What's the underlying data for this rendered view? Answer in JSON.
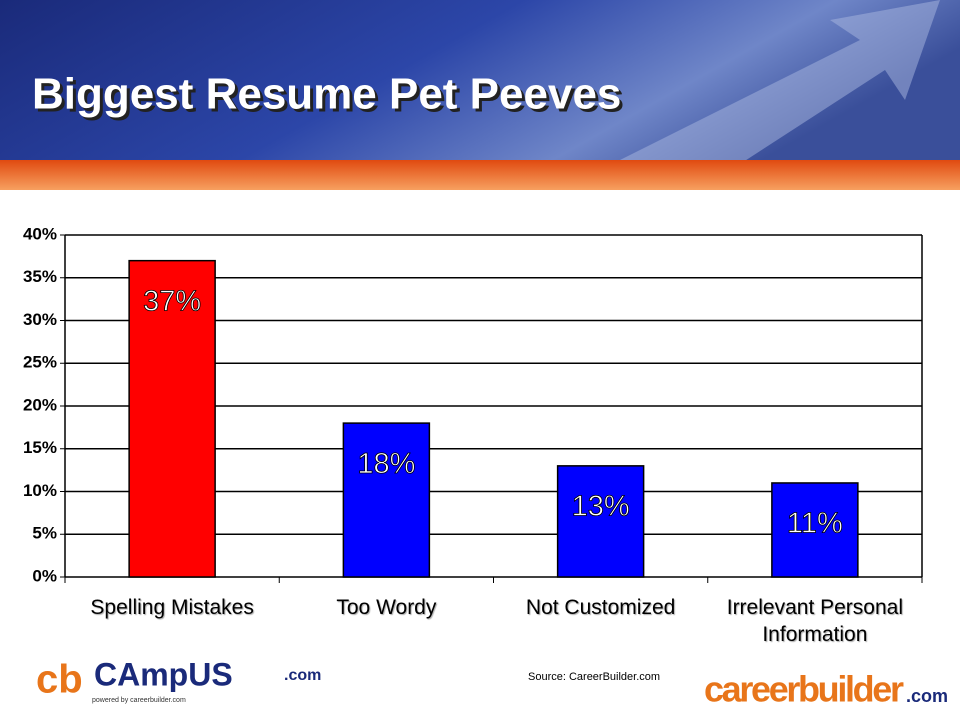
{
  "chart_data": {
    "type": "bar",
    "title": "Biggest Resume Pet Peeves",
    "categories": [
      "Spelling Mistakes",
      "Too Wordy",
      "Not Customized",
      "Irrelevant Personal Information"
    ],
    "values": [
      37,
      18,
      13,
      11
    ],
    "value_labels": [
      "37%",
      "18%",
      "13%",
      "11%"
    ],
    "colors": [
      "#ff0000",
      "#0000ff",
      "#0000ff",
      "#0000ff"
    ],
    "ylim": [
      0,
      40
    ],
    "yticks": [
      {
        "value": 0,
        "label": "0%"
      },
      {
        "value": 5,
        "label": "5%"
      },
      {
        "value": 10,
        "label": "10%"
      },
      {
        "value": 15,
        "label": "15%"
      },
      {
        "value": 20,
        "label": "20%"
      },
      {
        "value": 25,
        "label": "25%"
      },
      {
        "value": 30,
        "label": "30%"
      },
      {
        "value": 35,
        "label": "35%"
      },
      {
        "value": 40,
        "label": "40%"
      }
    ],
    "grid": true,
    "source": "Source: CareerBuilder.com"
  },
  "footer": {
    "left_logo": [
      "cb",
      "CAmpUS",
      ".com",
      "powered by careerbuilder.com"
    ],
    "right_logo": [
      "careerbuilder",
      ".com"
    ]
  }
}
